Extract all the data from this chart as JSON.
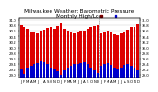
{
  "title": "Milwaukee Weather: Barometric Pressure",
  "title2": "Monthly High/Low",
  "months": [
    "J",
    "F",
    "M",
    "A",
    "M",
    "J",
    "J",
    "A",
    "S",
    "O",
    "N",
    "D",
    "J",
    "F",
    "M",
    "A",
    "M",
    "J",
    "J",
    "A",
    "S",
    "O",
    "N",
    "D",
    "J",
    "F",
    "M",
    "A",
    "M",
    "J",
    "J",
    "A",
    "S",
    "O",
    "N",
    "D"
  ],
  "highs": [
    30.8,
    30.72,
    30.68,
    30.55,
    30.55,
    30.52,
    30.6,
    30.65,
    30.7,
    30.72,
    30.68,
    30.78,
    30.85,
    30.68,
    30.6,
    30.55,
    30.52,
    30.55,
    30.6,
    30.62,
    30.68,
    30.75,
    30.78,
    30.8,
    30.52,
    30.55,
    30.6,
    30.55,
    30.48,
    30.45,
    30.52,
    30.58,
    30.65,
    30.72,
    30.75,
    30.82
  ],
  "lows": [
    29.2,
    29.05,
    29.25,
    29.32,
    29.38,
    29.42,
    29.48,
    29.45,
    29.38,
    29.28,
    29.22,
    29.12,
    29.0,
    29.18,
    29.28,
    29.32,
    29.38,
    29.4,
    29.42,
    29.45,
    29.38,
    29.28,
    29.18,
    29.08,
    29.32,
    29.38,
    29.42,
    29.35,
    29.28,
    29.22,
    29.28,
    29.35,
    29.4,
    29.32,
    29.25,
    29.18
  ],
  "high_color": "#dd0000",
  "low_color": "#0000cc",
  "bg_color": "#ffffff",
  "ylim_min": 28.9,
  "ylim_max": 31.05,
  "yticks": [
    29.0,
    29.2,
    29.4,
    29.6,
    29.8,
    30.0,
    30.2,
    30.4,
    30.6,
    30.8,
    31.0
  ],
  "grid_color": "#aaaaaa",
  "title_fontsize": 4.2,
  "tick_fontsize": 2.8,
  "bar_width": 0.38,
  "dashed_cols": [
    12,
    24
  ]
}
